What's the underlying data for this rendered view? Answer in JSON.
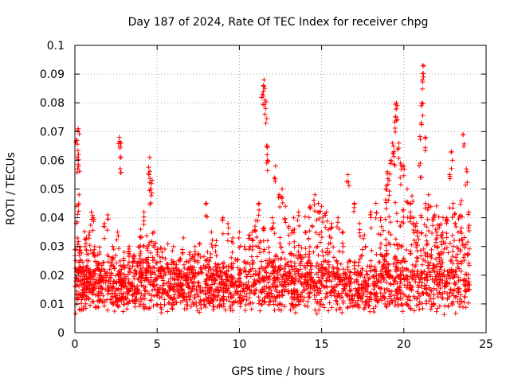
{
  "chart_data": {
    "type": "scatter",
    "title": "Day 187 of 2024, Rate Of TEC Index for receiver chpg",
    "xlabel": "GPS time / hours",
    "ylabel": "ROTI / TECUs",
    "xlim": [
      0,
      25
    ],
    "ylim": [
      0,
      0.1
    ],
    "xticks": [
      0,
      5,
      10,
      15,
      20,
      25
    ],
    "xtick_labels": [
      "0",
      "5",
      "10",
      "15",
      "20",
      "25"
    ],
    "yticks": [
      0,
      0.01,
      0.02,
      0.03,
      0.04,
      0.05,
      0.06,
      0.07,
      0.08,
      0.09,
      0.1
    ],
    "ytick_labels": [
      "0",
      "0.01",
      "0.02",
      "0.03",
      "0.04",
      "0.05",
      "0.06",
      "0.07",
      "0.08",
      "0.09",
      "0.1"
    ],
    "grid": true,
    "marker": "+",
    "color": "#ff0000",
    "series": [
      {
        "name": "ROTI",
        "x": [
          0.05,
          0.1,
          0.15,
          0.2,
          0.25,
          0.3,
          0.12,
          0.22,
          0.35,
          0.5,
          0.7,
          0.9,
          1.0,
          1.1,
          1.2,
          1.5,
          1.8,
          2.0,
          2.3,
          2.6,
          2.7,
          2.75,
          2.8,
          3.0,
          3.3,
          3.6,
          4.0,
          4.2,
          4.4,
          4.5,
          4.55,
          4.6,
          4.7,
          4.8,
          5.0,
          5.3,
          5.6,
          6.0,
          6.3,
          6.6,
          7.0,
          7.3,
          7.6,
          8.0,
          8.3,
          8.6,
          9.0,
          9.3,
          9.6,
          10.0,
          10.3,
          10.6,
          11.0,
          11.2,
          11.4,
          11.5,
          11.55,
          11.6,
          11.65,
          11.7,
          12.0,
          12.2,
          12.4,
          12.6,
          12.8,
          13.0,
          13.3,
          13.6,
          14.0,
          14.3,
          14.6,
          14.8,
          15.0,
          15.3,
          15.6,
          16.0,
          16.3,
          16.6,
          17.0,
          17.3,
          17.6,
          18.0,
          18.3,
          18.6,
          18.9,
          19.0,
          19.1,
          19.2,
          19.3,
          19.4,
          19.5,
          19.55,
          19.6,
          19.7,
          19.8,
          20.0,
          20.2,
          20.4,
          20.6,
          20.8,
          21.0,
          21.05,
          21.1,
          21.15,
          21.2,
          21.3,
          21.5,
          21.8,
          22.0,
          22.3,
          22.6,
          22.8,
          22.9,
          23.0,
          23.3,
          23.5,
          23.6,
          23.8,
          23.95
        ],
        "y": [
          0.029,
          0.044,
          0.061,
          0.071,
          0.048,
          0.03,
          0.067,
          0.062,
          0.025,
          0.022,
          0.033,
          0.035,
          0.042,
          0.04,
          0.03,
          0.028,
          0.038,
          0.041,
          0.03,
          0.035,
          0.068,
          0.061,
          0.066,
          0.028,
          0.03,
          0.027,
          0.036,
          0.042,
          0.03,
          0.055,
          0.061,
          0.05,
          0.053,
          0.035,
          0.029,
          0.028,
          0.024,
          0.03,
          0.025,
          0.033,
          0.028,
          0.03,
          0.031,
          0.045,
          0.035,
          0.032,
          0.04,
          0.038,
          0.033,
          0.035,
          0.03,
          0.034,
          0.039,
          0.045,
          0.083,
          0.088,
          0.085,
          0.078,
          0.065,
          0.06,
          0.04,
          0.058,
          0.048,
          0.05,
          0.044,
          0.037,
          0.04,
          0.042,
          0.035,
          0.044,
          0.048,
          0.045,
          0.044,
          0.042,
          0.038,
          0.04,
          0.035,
          0.055,
          0.045,
          0.038,
          0.034,
          0.042,
          0.045,
          0.04,
          0.05,
          0.056,
          0.053,
          0.06,
          0.066,
          0.063,
          0.075,
          0.08,
          0.079,
          0.066,
          0.059,
          0.058,
          0.05,
          0.045,
          0.04,
          0.035,
          0.059,
          0.073,
          0.08,
          0.093,
          0.089,
          0.068,
          0.048,
          0.04,
          0.035,
          0.034,
          0.04,
          0.055,
          0.063,
          0.045,
          0.035,
          0.046,
          0.069,
          0.057,
          0.042
        ]
      }
    ],
    "dense_band": {
      "x_range": [
        0,
        24
      ],
      "y_range": [
        0.004,
        0.03
      ],
      "typical_low": 0.008,
      "typical_high": 0.022
    }
  }
}
